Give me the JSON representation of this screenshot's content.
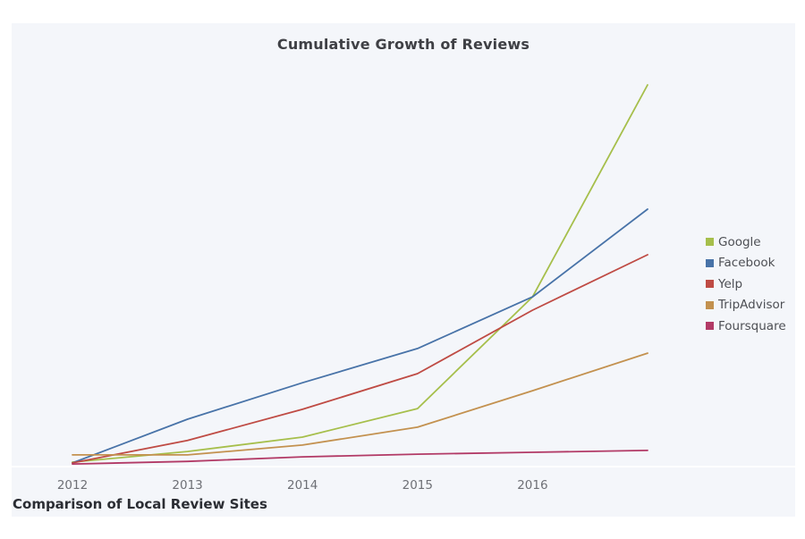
{
  "page": {
    "background": "#ffffff",
    "card_background": "#f4f6fa"
  },
  "chart_data": {
    "type": "line",
    "title": "Cumulative Growth of Reviews",
    "footer": "Comparison of Local Review Sites",
    "x": [
      2012,
      2013,
      2014,
      2015,
      2016,
      2017
    ],
    "x_tick_labels": [
      "2012",
      "2013",
      "2014",
      "2015",
      "2016"
    ],
    "xlabel": "",
    "ylabel": "",
    "ylim": [
      0,
      100
    ],
    "grid": false,
    "legend_position": "right",
    "note": "No y-axis shown in source; values are relative units estimated from line positions (tallest endpoint = 100). Final data point falls one interval past the last labeled tick (2016).",
    "series": [
      {
        "name": "Google",
        "color": "#a6bf4b",
        "values": [
          0.7,
          3.5,
          7.3,
          14.8,
          44.2,
          100.0
        ]
      },
      {
        "name": "Facebook",
        "color": "#4873a8",
        "values": [
          0.5,
          12.0,
          21.6,
          30.6,
          44.2,
          67.3
        ]
      },
      {
        "name": "Yelp",
        "color": "#bf4b44",
        "values": [
          0.5,
          6.4,
          14.6,
          24.0,
          40.7,
          55.3
        ]
      },
      {
        "name": "TripAdvisor",
        "color": "#c3914f",
        "values": [
          2.6,
          2.6,
          5.2,
          9.9,
          19.5,
          29.4
        ]
      },
      {
        "name": "Foursquare",
        "color": "#b23a66",
        "values": [
          0.2,
          0.9,
          2.1,
          2.8,
          3.3,
          3.8
        ]
      }
    ]
  }
}
